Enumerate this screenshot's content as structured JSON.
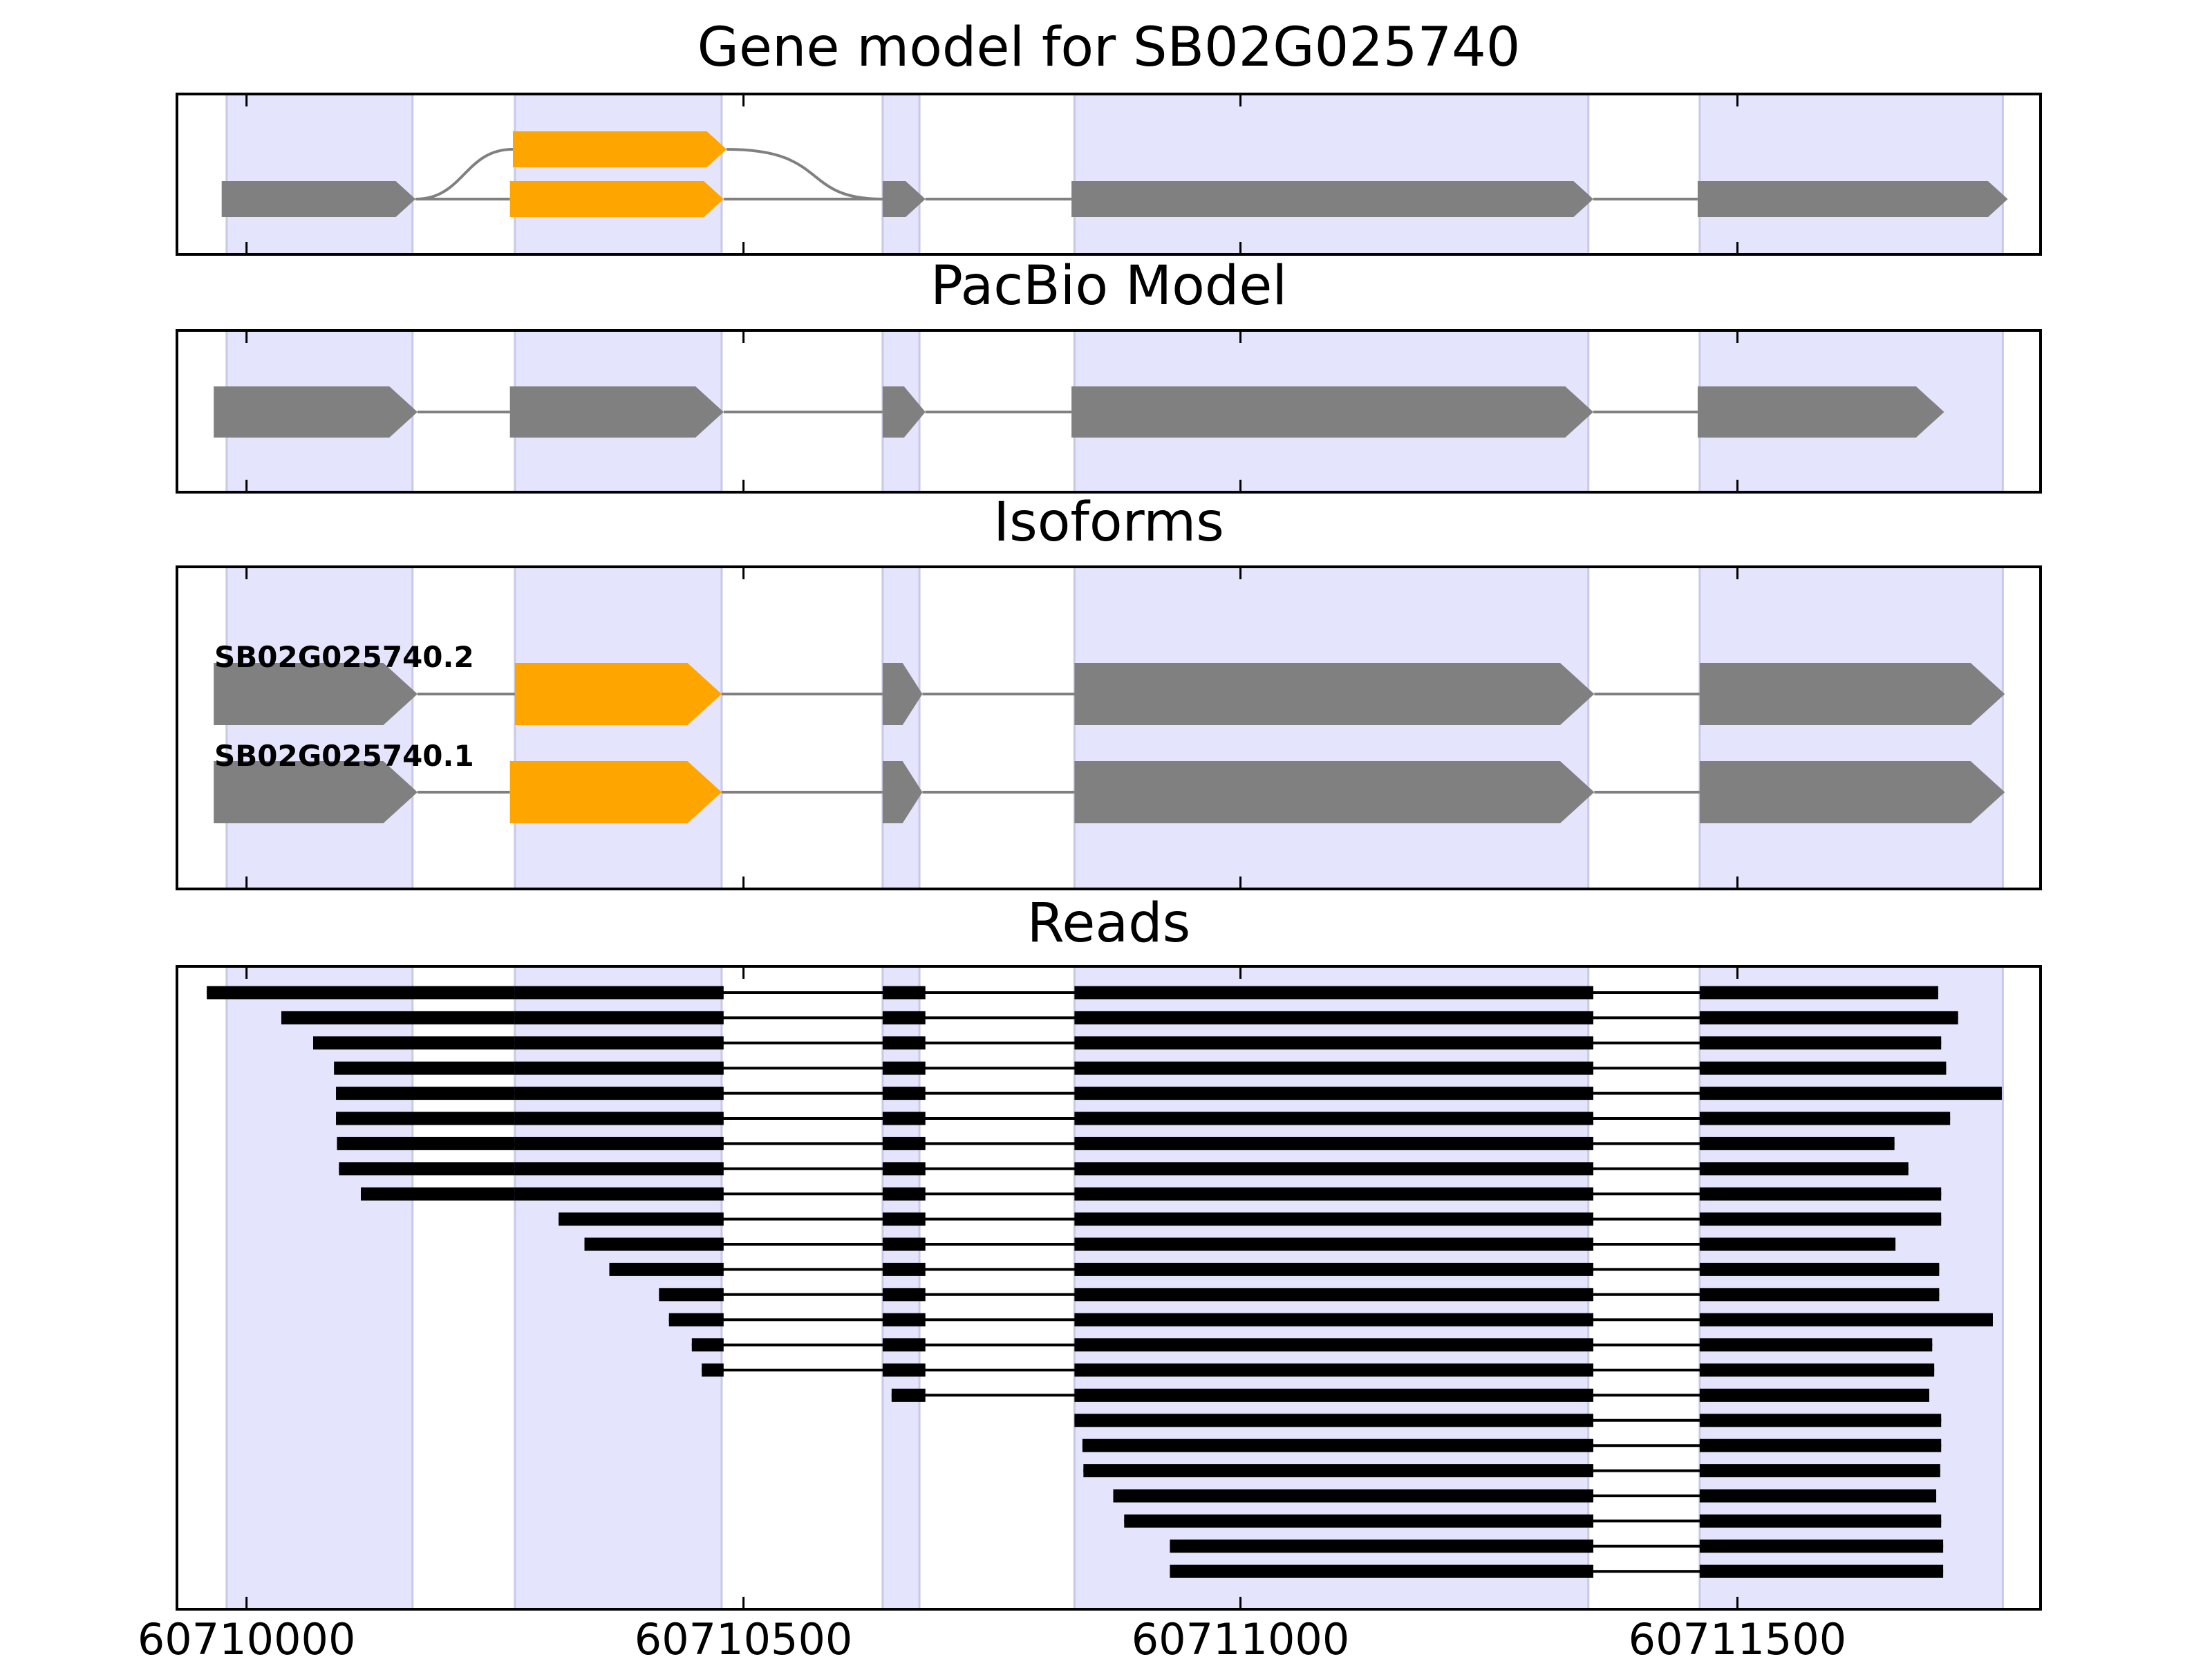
{
  "figure": {
    "panels": [
      {
        "id": "gene-model",
        "title": "Gene model for SB02G025740"
      },
      {
        "id": "pacbio-model",
        "title": "PacBio Model"
      },
      {
        "id": "isoforms",
        "title": "Isoforms"
      },
      {
        "id": "reads",
        "title": "Reads"
      }
    ],
    "x_axis": {
      "range": [
        60709930,
        60711805
      ],
      "ticks": [
        60710000,
        60710500,
        60711000,
        60711500
      ],
      "tick_labels": [
        "60710000",
        "60710500",
        "60711000",
        "60711500"
      ]
    },
    "colors": {
      "exon": "#808080",
      "alt_exon": "#ffa500",
      "shade": "#e4e4fc",
      "shade_edge": "#c8c8ea",
      "intron": "#808080",
      "read": "#000000"
    },
    "shaded_regions": [
      [
        60709980,
        60710167
      ],
      [
        60710270,
        60710478
      ],
      [
        60710640,
        60710677
      ],
      [
        60710833,
        60711350
      ],
      [
        60711462,
        60711767
      ]
    ]
  },
  "chart_data": {
    "type": "gene-structure",
    "gene_model": {
      "main_exons": [
        [
          60709975,
          60710170
        ],
        [
          60710640,
          60710683
        ],
        [
          60710830,
          60711355
        ],
        [
          60711460,
          60711772
        ]
      ],
      "alt_exon_main": [
        60710265,
        60710480
      ],
      "alt_exon_upper": [
        60710268,
        60710483
      ]
    },
    "pacbio_model": {
      "exons": [
        [
          60709967,
          60710172
        ],
        [
          60710265,
          60710480
        ],
        [
          60710640,
          60710683
        ],
        [
          60710830,
          60711355
        ],
        [
          60711460,
          60711708
        ]
      ]
    },
    "isoforms": [
      {
        "name": "SB02G025740.2",
        "exons": [
          [
            60709967,
            60710172
          ],
          [
            60710270,
            60710478
          ],
          [
            60710640,
            60710680
          ],
          [
            60710833,
            60711356
          ],
          [
            60711462,
            60711769
          ]
        ],
        "alt_exon_index": 1
      },
      {
        "name": "SB02G025740.1",
        "exons": [
          [
            60709967,
            60710172
          ],
          [
            60710265,
            60710478
          ],
          [
            60710640,
            60710680
          ],
          [
            60710833,
            60711356
          ],
          [
            60711462,
            60711769
          ]
        ],
        "alt_exon_index": 1
      }
    ],
    "reads": [
      [
        60709960,
        60711702
      ],
      [
        60710035,
        60711722
      ],
      [
        60710067,
        60711705
      ],
      [
        60710088,
        60711710
      ],
      [
        60710090,
        60711766
      ],
      [
        60710090,
        60711714
      ],
      [
        60710091,
        60711658
      ],
      [
        60710093,
        60711672
      ],
      [
        60710115,
        60711705
      ],
      [
        60710314,
        60711705
      ],
      [
        60710340,
        60711659
      ],
      [
        60710365,
        60711703
      ],
      [
        60710415,
        60711703
      ],
      [
        60710425,
        60711757
      ],
      [
        60710448,
        60711696
      ],
      [
        60710458,
        60711698
      ],
      [
        60710649,
        60711693
      ],
      [
        60710829,
        60711705
      ],
      [
        60710841,
        60711705
      ],
      [
        60710842,
        60711704
      ],
      [
        60710872,
        60711700
      ],
      [
        60710883,
        60711705
      ],
      [
        60710929,
        60711707
      ],
      [
        60710929,
        60711707
      ]
    ],
    "read_exon_blocks": [
      [
        60710167,
        60710270
      ],
      [
        60710270,
        60710480
      ],
      [
        60710640,
        60710683
      ],
      [
        60710833,
        60711355
      ],
      [
        60711462,
        60711800
      ]
    ]
  }
}
